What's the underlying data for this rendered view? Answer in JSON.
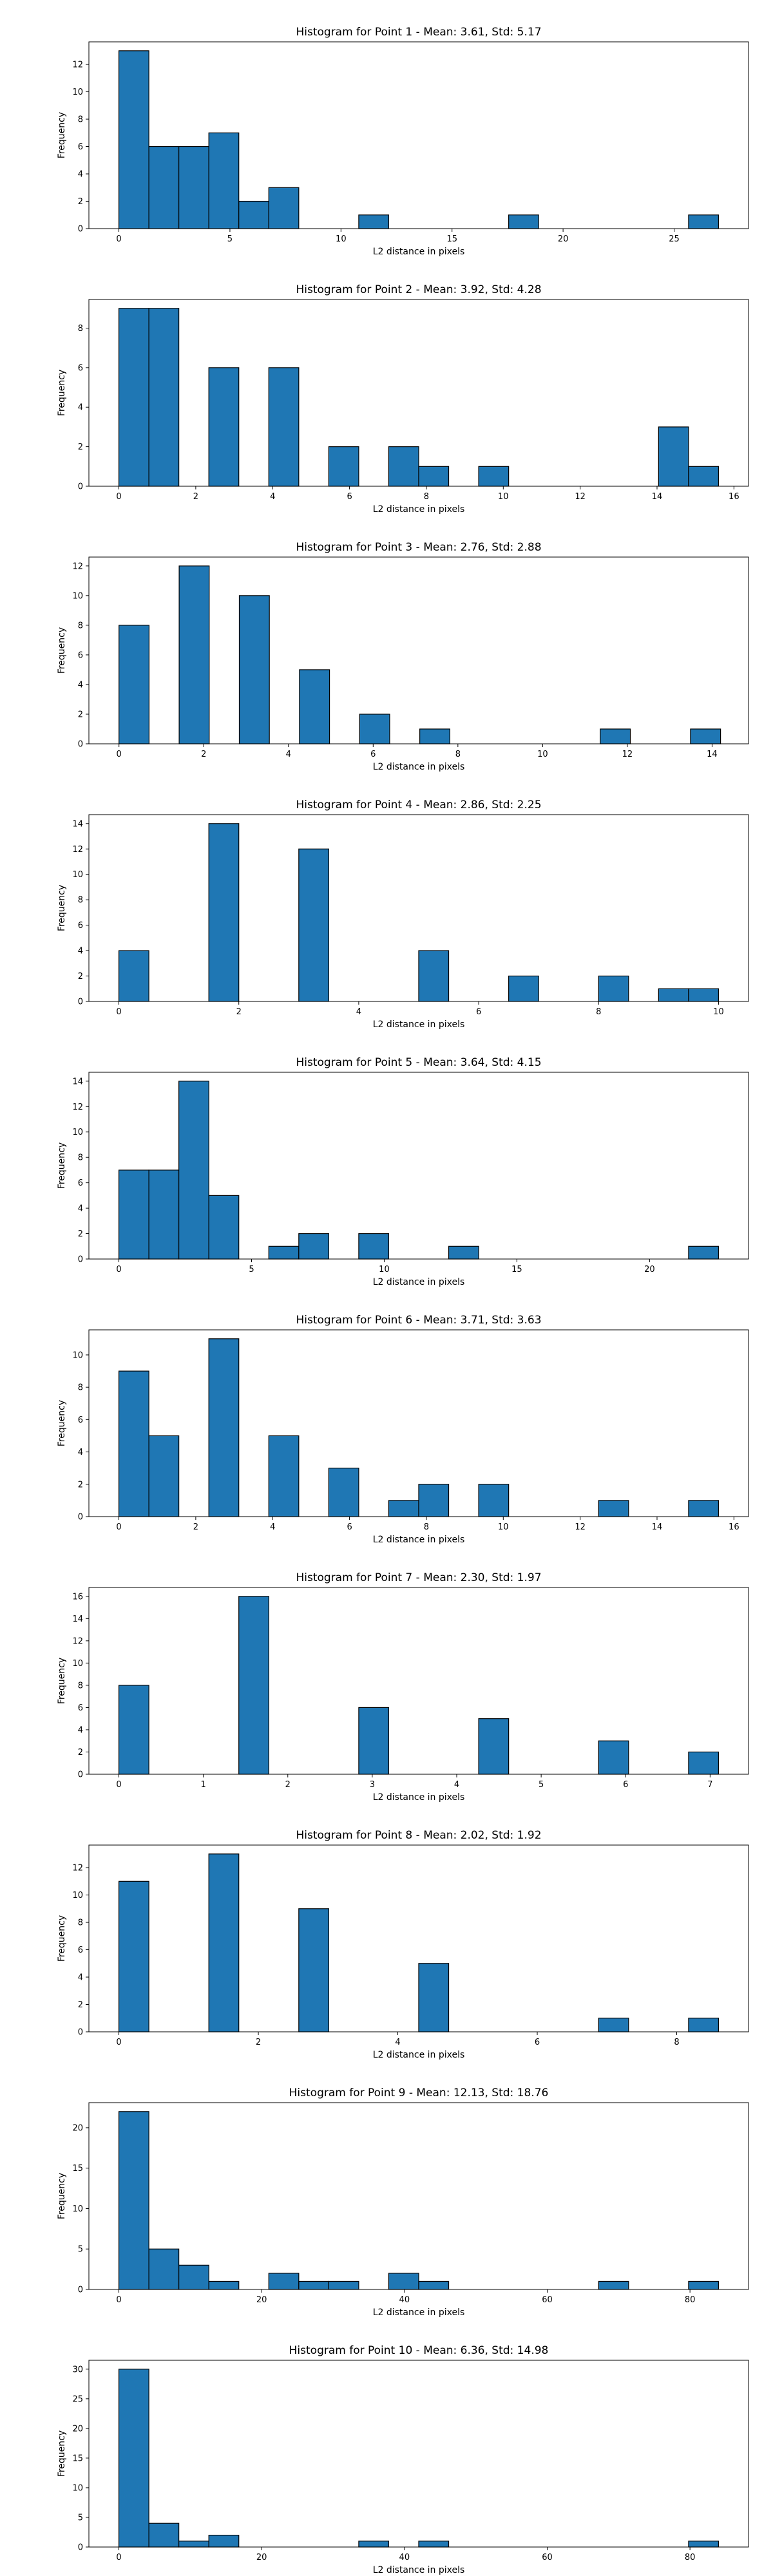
{
  "chart_data": [
    {
      "type": "bar",
      "title": "Histogram for Point 1 - Mean: 3.61, Std: 5.17",
      "xlabel": "L2 distance in pixels",
      "ylabel": "Frequency",
      "xlim": [
        -1.35,
        28.35
      ],
      "ylim": [
        0,
        13.65
      ],
      "xticks": [
        0,
        5,
        10,
        15,
        20,
        25
      ],
      "yticks": [
        0,
        2,
        4,
        6,
        8,
        10,
        12
      ],
      "bin_start": 0,
      "bin_width": 1.35,
      "values": [
        13,
        6,
        6,
        7,
        2,
        3,
        0,
        0,
        1,
        0,
        0,
        0,
        0,
        1,
        0,
        0,
        0,
        0,
        0,
        1
      ]
    },
    {
      "type": "bar",
      "title": "Histogram for Point 2 - Mean: 3.92, Std: 4.28",
      "xlabel": "L2 distance in pixels",
      "ylabel": "Frequency",
      "xlim": [
        -0.78,
        16.38
      ],
      "ylim": [
        0,
        9.45
      ],
      "xticks": [
        0,
        2,
        4,
        6,
        8,
        10,
        12,
        14,
        16
      ],
      "yticks": [
        0,
        2,
        4,
        6,
        8
      ],
      "bin_start": 0,
      "bin_width": 0.78,
      "values": [
        9,
        9,
        0,
        6,
        0,
        6,
        0,
        2,
        0,
        2,
        1,
        0,
        1,
        0,
        0,
        0,
        0,
        0,
        3,
        1
      ]
    },
    {
      "type": "bar",
      "title": "Histogram for Point 3 - Mean: 2.76, Std: 2.88",
      "xlabel": "L2 distance in pixels",
      "ylabel": "Frequency",
      "xlim": [
        -0.71,
        14.86
      ],
      "ylim": [
        0,
        12.6
      ],
      "xticks": [
        0,
        2,
        4,
        6,
        8,
        10,
        12,
        14
      ],
      "yticks": [
        0,
        2,
        4,
        6,
        8,
        10,
        12
      ],
      "bin_start": 0,
      "bin_width": 0.71,
      "values": [
        8,
        0,
        12,
        0,
        10,
        0,
        5,
        0,
        2,
        0,
        1,
        0,
        0,
        0,
        0,
        0,
        1,
        0,
        0,
        1
      ]
    },
    {
      "type": "bar",
      "title": "Histogram for Point 4 - Mean: 2.86, Std: 2.25",
      "xlabel": "L2 distance in pixels",
      "ylabel": "Frequency",
      "xlim": [
        -0.5,
        10.5
      ],
      "ylim": [
        0,
        14.7
      ],
      "xticks": [
        0,
        2,
        4,
        6,
        8,
        10
      ],
      "yticks": [
        0,
        2,
        4,
        6,
        8,
        10,
        12,
        14
      ],
      "bin_start": 0,
      "bin_width": 0.5,
      "values": [
        4,
        0,
        0,
        14,
        0,
        0,
        12,
        0,
        0,
        0,
        4,
        0,
        0,
        2,
        0,
        0,
        2,
        0,
        1,
        1
      ]
    },
    {
      "type": "bar",
      "title": "Histogram for Point 5 - Mean: 3.64, Std: 4.15",
      "xlabel": "L2 distance in pixels",
      "ylabel": "Frequency",
      "xlim": [
        -1.13,
        23.73
      ],
      "ylim": [
        0,
        14.7
      ],
      "xticks": [
        0,
        5,
        10,
        15,
        20
      ],
      "yticks": [
        0,
        2,
        4,
        6,
        8,
        10,
        12,
        14
      ],
      "bin_start": 0,
      "bin_width": 1.13,
      "values": [
        7,
        7,
        14,
        5,
        0,
        1,
        2,
        0,
        2,
        0,
        0,
        1,
        0,
        0,
        0,
        0,
        0,
        0,
        0,
        1
      ]
    },
    {
      "type": "bar",
      "title": "Histogram for Point 6 - Mean: 3.71, Std: 3.63",
      "xlabel": "L2 distance in pixels",
      "ylabel": "Frequency",
      "xlim": [
        -0.78,
        16.38
      ],
      "ylim": [
        0,
        11.55
      ],
      "xticks": [
        0,
        2,
        4,
        6,
        8,
        10,
        12,
        14,
        16
      ],
      "yticks": [
        0,
        2,
        4,
        6,
        8,
        10
      ],
      "bin_start": 0,
      "bin_width": 0.78,
      "values": [
        9,
        5,
        0,
        11,
        0,
        5,
        0,
        3,
        0,
        1,
        2,
        0,
        2,
        0,
        0,
        0,
        1,
        0,
        0,
        1
      ]
    },
    {
      "type": "bar",
      "title": "Histogram for Point 7 - Mean: 2.30, Std: 1.97",
      "xlabel": "L2 distance in pixels",
      "ylabel": "Frequency",
      "xlim": [
        -0.355,
        7.455
      ],
      "ylim": [
        0,
        16.8
      ],
      "xticks": [
        0,
        1,
        2,
        3,
        4,
        5,
        6,
        7
      ],
      "yticks": [
        0,
        2,
        4,
        6,
        8,
        10,
        12,
        14,
        16
      ],
      "bin_start": 0,
      "bin_width": 0.355,
      "values": [
        8,
        0,
        0,
        0,
        16,
        0,
        0,
        0,
        6,
        0,
        0,
        0,
        5,
        0,
        0,
        0,
        3,
        0,
        0,
        2
      ]
    },
    {
      "type": "bar",
      "title": "Histogram for Point 8 - Mean: 2.02, Std: 1.92",
      "xlabel": "L2 distance in pixels",
      "ylabel": "Frequency",
      "xlim": [
        -0.43,
        9.03
      ],
      "ylim": [
        0,
        13.65
      ],
      "xticks": [
        0,
        2,
        4,
        6,
        8
      ],
      "yticks": [
        0,
        2,
        4,
        6,
        8,
        10,
        12
      ],
      "bin_start": 0,
      "bin_width": 0.43,
      "values": [
        11,
        0,
        0,
        13,
        0,
        0,
        9,
        0,
        0,
        0,
        5,
        0,
        0,
        0,
        0,
        0,
        1,
        0,
        0,
        1
      ]
    },
    {
      "type": "bar",
      "title": "Histogram for Point 9 - Mean: 12.13, Std: 18.76",
      "xlabel": "L2 distance in pixels",
      "ylabel": "Frequency",
      "xlim": [
        -4.2,
        88.2
      ],
      "ylim": [
        0,
        23.1
      ],
      "xticks": [
        0,
        20,
        40,
        60,
        80
      ],
      "yticks": [
        0,
        5,
        10,
        15,
        20
      ],
      "bin_start": 0,
      "bin_width": 4.2,
      "values": [
        22,
        5,
        3,
        1,
        0,
        2,
        1,
        1,
        0,
        2,
        1,
        0,
        0,
        0,
        0,
        0,
        1,
        0,
        0,
        1
      ]
    },
    {
      "type": "bar",
      "title": "Histogram for Point 10 - Mean: 6.36, Std: 14.98",
      "xlabel": "L2 distance in pixels",
      "ylabel": "Frequency",
      "xlim": [
        -4.2,
        88.2
      ],
      "ylim": [
        0,
        31.5
      ],
      "xticks": [
        0,
        20,
        40,
        60,
        80
      ],
      "yticks": [
        0,
        5,
        10,
        15,
        20,
        25,
        30
      ],
      "bin_start": 0,
      "bin_width": 4.2,
      "values": [
        30,
        4,
        1,
        2,
        0,
        0,
        0,
        0,
        1,
        0,
        1,
        0,
        0,
        0,
        0,
        0,
        0,
        0,
        0,
        1
      ]
    }
  ],
  "colors": {
    "bar_fill": "#1f77b4",
    "bar_edge": "#000000",
    "axis": "#000000",
    "background": "#ffffff"
  }
}
